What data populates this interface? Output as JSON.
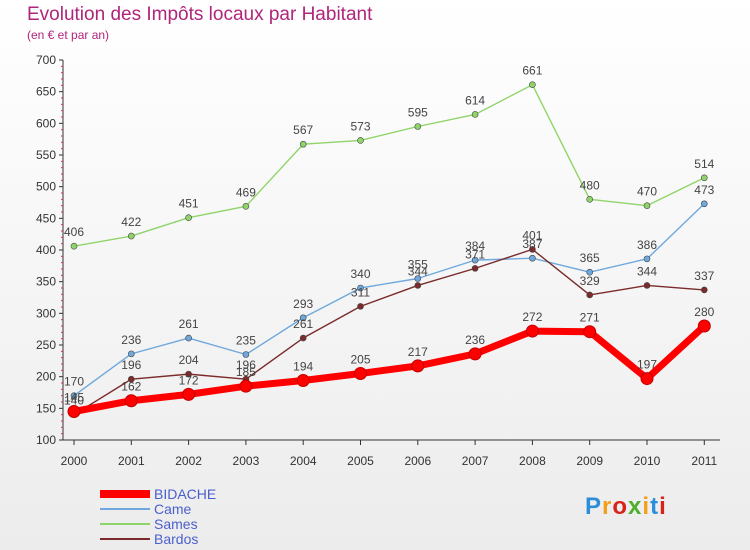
{
  "header": {
    "title": "Evolution des Impôts locaux par Habitant",
    "subtitle": "(en € et par an)"
  },
  "logo": {
    "text": "Proxiti",
    "colors": [
      "#2a8fd8",
      "#f2a01b",
      "#d8231c",
      "#4faf2d",
      "#f2a01b",
      "#2a8fd8",
      "#d8231c"
    ]
  },
  "chart_data": {
    "type": "line",
    "x": [
      "2000",
      "2001",
      "2002",
      "2003",
      "2004",
      "2005",
      "2006",
      "2007",
      "2008",
      "2009",
      "2010",
      "2011"
    ],
    "ylim": [
      100,
      700
    ],
    "yticks": [
      100,
      150,
      200,
      250,
      300,
      350,
      400,
      450,
      500,
      550,
      600,
      650,
      700
    ],
    "grid": false,
    "legend": "bottom-left",
    "series": [
      {
        "name": "BIDACHE",
        "color": "#ff0000",
        "values": [
          145,
          162,
          172,
          185,
          194,
          205,
          217,
          236,
          272,
          271,
          197,
          280
        ],
        "labels": [
          "145",
          "162",
          "172",
          "185",
          "194",
          "205",
          "217",
          "236",
          "272",
          "271",
          "197",
          "280"
        ]
      },
      {
        "name": "Came",
        "color": "#6fa8dc",
        "values": [
          170,
          236,
          261,
          235,
          293,
          340,
          355,
          384,
          387,
          365,
          386,
          473
        ],
        "labels": [
          "170",
          "236",
          "261",
          "235",
          "293",
          "340",
          "355",
          "384",
          "387",
          "365",
          "386",
          "473"
        ]
      },
      {
        "name": "Sames",
        "color": "#8fd46a",
        "values": [
          406,
          422,
          451,
          469,
          567,
          573,
          595,
          614,
          661,
          480,
          470,
          514
        ],
        "labels": [
          "406",
          "422",
          "451",
          "469",
          "567",
          "573",
          "595",
          "614",
          "661",
          "480",
          "470",
          "514"
        ]
      },
      {
        "name": "Bardos",
        "color": "#7b2b2b",
        "values": [
          140,
          196,
          204,
          196,
          261,
          311,
          344,
          371,
          401,
          329,
          344,
          337
        ],
        "labels": [
          "140",
          "196",
          "204",
          "196",
          "261",
          "311",
          "344",
          "371",
          "401",
          "329",
          "344",
          "337"
        ]
      }
    ]
  }
}
